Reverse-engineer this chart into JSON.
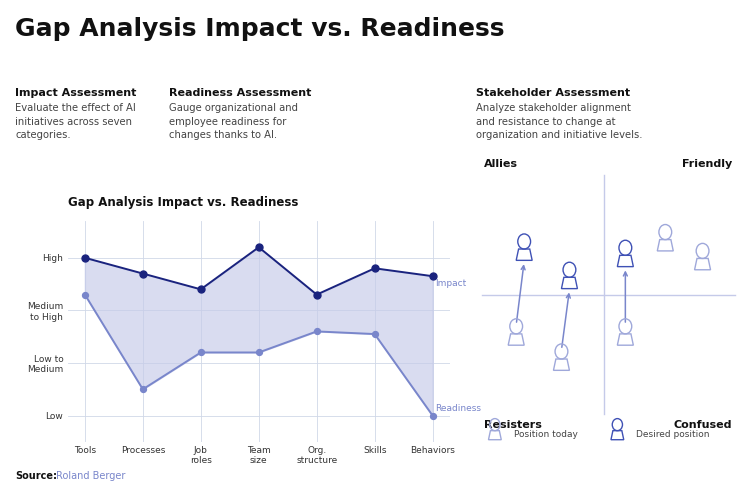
{
  "title": "Gap Analysis Impact vs. Readiness",
  "title_fontsize": 18,
  "background_color": "#ffffff",
  "sections": [
    {
      "heading": "Impact Assessment",
      "body": "Evaluate the effect of AI\ninitiatives across seven\ncategories."
    },
    {
      "heading": "Readiness Assessment",
      "body": "Gauge organizational and\nemployee readiness for\nchanges thanks to AI."
    },
    {
      "heading": "Stakeholder Assessment",
      "body": "Analyze stakeholder alignment\nand resistance to change at\norganization and initiative levels."
    }
  ],
  "chart_title": "Gap Analysis Impact vs. Readiness",
  "categories": [
    "Tools",
    "Processes",
    "Job\nroles",
    "Team\nsize",
    "Org.\nstructure",
    "Skills",
    "Behaviors"
  ],
  "ytick_labels": [
    "Low",
    "Low to\nMedium",
    "Medium\nto High",
    "High"
  ],
  "ytick_values": [
    1,
    2,
    3,
    4
  ],
  "impact_values": [
    4.0,
    3.7,
    3.4,
    4.2,
    3.3,
    3.8,
    3.65
  ],
  "readiness_values": [
    3.3,
    1.5,
    2.2,
    2.2,
    2.6,
    2.55,
    1.0
  ],
  "impact_color": "#1a237e",
  "readiness_color": "#7986cb",
  "fill_color": "#c5cae9",
  "fill_alpha": 0.65,
  "impact_label": "Impact",
  "readiness_label": "Readiness",
  "grid_color": "#d0d8e8",
  "source_label": "Source:",
  "source_value": "Roland Berger"
}
